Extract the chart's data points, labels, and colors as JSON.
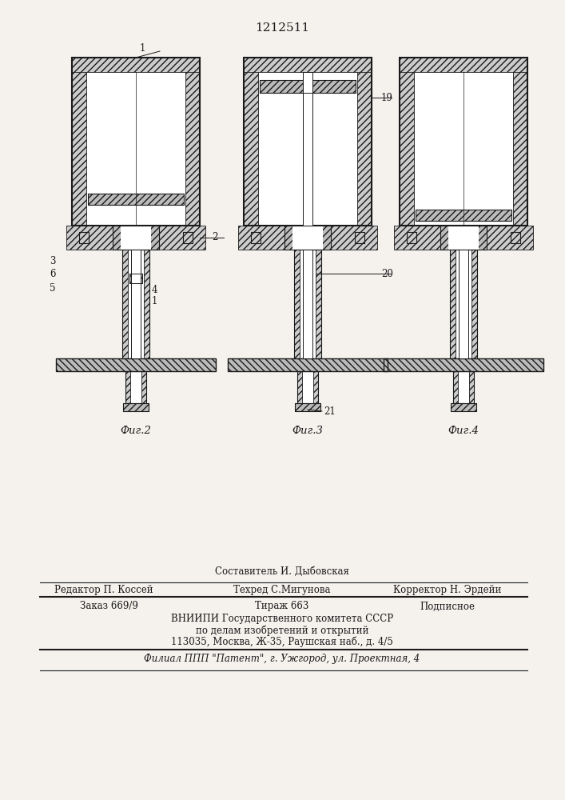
{
  "title": "1212511",
  "bg_color": "#f5f2ee",
  "line_color": "#1a1a1a",
  "fig2_label": "Фиг.2",
  "fig3_label": "Фиг.3",
  "fig4_label": "Фиг.4",
  "footer": {
    "line1_text": "Составитель И. Дыбовская",
    "editor": "Редактор П. Коссей",
    "tech": "Техред С.Мигунова",
    "corrector": "Корректор Н. Эрдейи",
    "order": "Заказ 669/9",
    "tirage": "Тираж 663",
    "podp": "Подписное",
    "vniip1": "ВНИИПИ Государственного комитета СССР",
    "vniip2": "по делам изобретений и открытий",
    "address": "113035, Москва, Ж-35, Раушская наб., д. 4/5",
    "filial": "Филиал ППП \"Патент\", г. Ужгород, ул. Проектная, 4"
  }
}
